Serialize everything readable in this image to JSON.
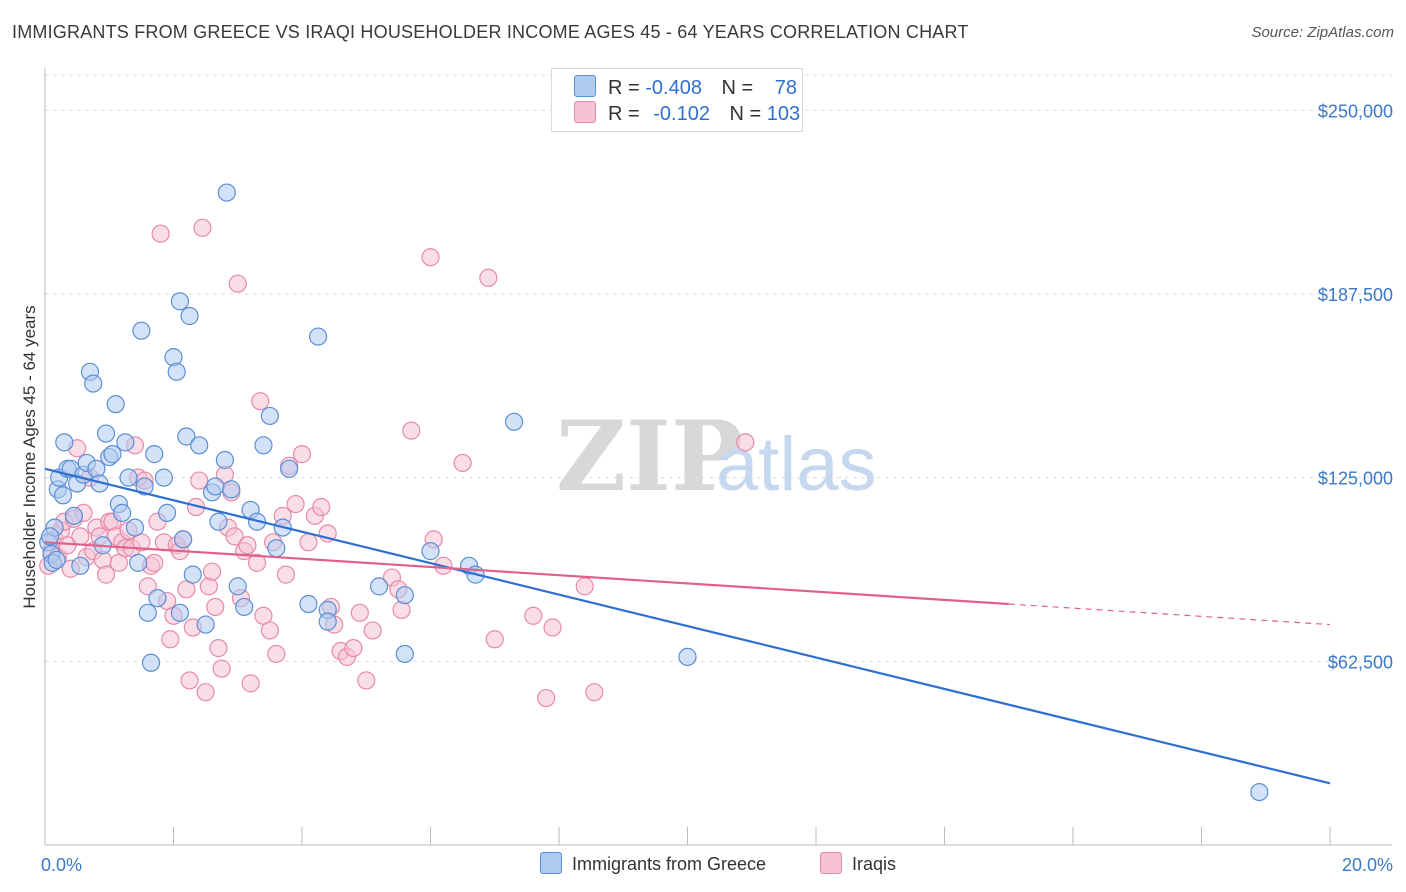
{
  "header": {
    "title": "IMMIGRANTS FROM GREECE VS IRAQI HOUSEHOLDER INCOME AGES 45 - 64 YEARS CORRELATION CHART",
    "source": "Source: ZipAtlas.com"
  },
  "legend": {
    "series1": {
      "r_label": "R =",
      "r_value": "-0.408",
      "n_label": "N =",
      "n_value": "78"
    },
    "series2": {
      "r_label": "R =",
      "r_value": "-0.102",
      "n_label": "N =",
      "n_value": "103"
    }
  },
  "watermark": {
    "part1": "ZIP",
    "part2": "atlas"
  },
  "colors": {
    "blue_fill": "#aecbf0",
    "blue_stroke": "#5b8fd6",
    "blue_line": "#2f6fd0",
    "pink_fill": "#f6c3d3",
    "pink_stroke": "#e88aa8",
    "pink_line": "#e0608c"
  },
  "chart_data": {
    "type": "scatter",
    "title": "IMMIGRANTS FROM GREECE VS IRAQI HOUSEHOLDER INCOME AGES 45 - 64 YEARS CORRELATION CHART",
    "xlabel": "",
    "ylabel": "Householder Income Ages 45 - 64 years",
    "xlim": [
      0,
      20
    ],
    "ylim": [
      0,
      262000
    ],
    "x_tick_labels": [
      "0.0%",
      "20.0%"
    ],
    "y_ticks": [
      62500,
      125000,
      187500,
      250000
    ],
    "y_tick_labels": [
      "$62,500",
      "$125,000",
      "$187,500",
      "$250,000"
    ],
    "grid": true,
    "series": [
      {
        "name": "Immigrants from Greece",
        "color": "#5b8fd6",
        "trend": {
          "x0": 0,
          "y0": 128000,
          "x1": 20,
          "y1": 21000,
          "solid_until": 20
        },
        "points": [
          [
            0.05,
            103000
          ],
          [
            0.1,
            99000
          ],
          [
            0.12,
            96000
          ],
          [
            0.15,
            108000
          ],
          [
            0.2,
            121000
          ],
          [
            0.22,
            125000
          ],
          [
            0.3,
            137000
          ],
          [
            0.35,
            128000
          ],
          [
            0.4,
            128000
          ],
          [
            0.45,
            112000
          ],
          [
            0.5,
            123000
          ],
          [
            0.55,
            95000
          ],
          [
            0.6,
            126000
          ],
          [
            0.65,
            130000
          ],
          [
            0.7,
            161000
          ],
          [
            0.75,
            157000
          ],
          [
            0.8,
            128000
          ],
          [
            0.85,
            123000
          ],
          [
            0.9,
            102000
          ],
          [
            0.95,
            140000
          ],
          [
            1.0,
            132000
          ],
          [
            1.05,
            133000
          ],
          [
            1.1,
            150000
          ],
          [
            1.15,
            116000
          ],
          [
            1.2,
            113000
          ],
          [
            1.25,
            137000
          ],
          [
            1.3,
            125000
          ],
          [
            1.4,
            108000
          ],
          [
            1.45,
            96000
          ],
          [
            1.5,
            175000
          ],
          [
            1.55,
            122000
          ],
          [
            1.6,
            79000
          ],
          [
            1.65,
            62000
          ],
          [
            1.7,
            133000
          ],
          [
            1.75,
            84000
          ],
          [
            1.85,
            125000
          ],
          [
            1.9,
            113000
          ],
          [
            2.0,
            166000
          ],
          [
            2.05,
            161000
          ],
          [
            2.1,
            79000
          ],
          [
            2.15,
            104000
          ],
          [
            2.2,
            139000
          ],
          [
            2.25,
            180000
          ],
          [
            2.3,
            92000
          ],
          [
            2.4,
            136000
          ],
          [
            2.5,
            75000
          ],
          [
            2.6,
            120000
          ],
          [
            2.65,
            122000
          ],
          [
            2.7,
            110000
          ],
          [
            2.8,
            131000
          ],
          [
            2.9,
            121000
          ],
          [
            3.0,
            88000
          ],
          [
            3.1,
            81000
          ],
          [
            3.2,
            114000
          ],
          [
            3.3,
            110000
          ],
          [
            3.4,
            136000
          ],
          [
            3.5,
            146000
          ],
          [
            3.6,
            101000
          ],
          [
            3.7,
            108000
          ],
          [
            3.8,
            128000
          ],
          [
            4.1,
            82000
          ],
          [
            4.25,
            173000
          ],
          [
            4.4,
            80000
          ],
          [
            4.4,
            76000
          ],
          [
            2.83,
            222000
          ],
          [
            2.1,
            185000
          ],
          [
            5.2,
            88000
          ],
          [
            5.6,
            65000
          ],
          [
            5.6,
            85000
          ],
          [
            6.0,
            100000
          ],
          [
            6.6,
            95000
          ],
          [
            6.7,
            92000
          ],
          [
            7.3,
            144000
          ],
          [
            10.0,
            64000
          ],
          [
            18.9,
            18000
          ],
          [
            0.08,
            105000
          ],
          [
            0.18,
            97000
          ],
          [
            0.28,
            119000
          ]
        ]
      },
      {
        "name": "Iraqis",
        "color": "#e88aa8",
        "trend": {
          "x0": 0,
          "y0": 103000,
          "x1": 20,
          "y1": 75000,
          "solid_until": 15
        },
        "points": [
          [
            0.05,
            95000
          ],
          [
            0.1,
            100000
          ],
          [
            0.15,
            104000
          ],
          [
            0.2,
            98000
          ],
          [
            0.25,
            107000
          ],
          [
            0.3,
            110000
          ],
          [
            0.35,
            102000
          ],
          [
            0.4,
            94000
          ],
          [
            0.45,
            111000
          ],
          [
            0.5,
            135000
          ],
          [
            0.55,
            105000
          ],
          [
            0.6,
            113000
          ],
          [
            0.65,
            98000
          ],
          [
            0.7,
            125000
          ],
          [
            0.75,
            100000
          ],
          [
            0.8,
            108000
          ],
          [
            0.85,
            105000
          ],
          [
            0.9,
            97000
          ],
          [
            0.95,
            92000
          ],
          [
            1.0,
            110000
          ],
          [
            1.05,
            110000
          ],
          [
            1.1,
            105000
          ],
          [
            1.15,
            96000
          ],
          [
            1.2,
            103000
          ],
          [
            1.25,
            101000
          ],
          [
            1.3,
            107000
          ],
          [
            1.35,
            101000
          ],
          [
            1.4,
            136000
          ],
          [
            1.45,
            125000
          ],
          [
            1.5,
            103000
          ],
          [
            1.55,
            124000
          ],
          [
            1.6,
            88000
          ],
          [
            1.65,
            95000
          ],
          [
            1.7,
            96000
          ],
          [
            1.75,
            110000
          ],
          [
            1.8,
            208000
          ],
          [
            1.85,
            103000
          ],
          [
            1.9,
            83000
          ],
          [
            1.95,
            70000
          ],
          [
            2.0,
            78000
          ],
          [
            2.05,
            102000
          ],
          [
            2.1,
            100000
          ],
          [
            2.15,
            104000
          ],
          [
            2.2,
            87000
          ],
          [
            2.25,
            56000
          ],
          [
            2.3,
            74000
          ],
          [
            2.35,
            115000
          ],
          [
            2.4,
            124000
          ],
          [
            2.45,
            210000
          ],
          [
            2.5,
            52000
          ],
          [
            2.55,
            88000
          ],
          [
            2.6,
            93000
          ],
          [
            2.65,
            81000
          ],
          [
            2.7,
            67000
          ],
          [
            2.75,
            60000
          ],
          [
            2.8,
            126000
          ],
          [
            2.85,
            108000
          ],
          [
            2.9,
            120000
          ],
          [
            2.95,
            105000
          ],
          [
            3.0,
            191000
          ],
          [
            3.05,
            84000
          ],
          [
            3.1,
            100000
          ],
          [
            3.15,
            102000
          ],
          [
            3.2,
            55000
          ],
          [
            3.3,
            96000
          ],
          [
            3.35,
            151000
          ],
          [
            3.4,
            78000
          ],
          [
            3.5,
            73000
          ],
          [
            3.55,
            103000
          ],
          [
            3.6,
            65000
          ],
          [
            3.7,
            112000
          ],
          [
            3.75,
            92000
          ],
          [
            3.8,
            129000
          ],
          [
            3.9,
            116000
          ],
          [
            4.0,
            133000
          ],
          [
            4.1,
            103000
          ],
          [
            4.2,
            112000
          ],
          [
            4.3,
            115000
          ],
          [
            4.4,
            106000
          ],
          [
            4.45,
            81000
          ],
          [
            4.5,
            75000
          ],
          [
            4.6,
            66000
          ],
          [
            4.7,
            64000
          ],
          [
            4.8,
            67000
          ],
          [
            4.9,
            79000
          ],
          [
            5.0,
            56000
          ],
          [
            5.1,
            73000
          ],
          [
            5.4,
            91000
          ],
          [
            5.5,
            87000
          ],
          [
            5.55,
            80000
          ],
          [
            5.7,
            141000
          ],
          [
            6.0,
            200000
          ],
          [
            6.05,
            104000
          ],
          [
            6.2,
            95000
          ],
          [
            6.5,
            130000
          ],
          [
            6.9,
            193000
          ],
          [
            7.0,
            70000
          ],
          [
            7.6,
            78000
          ],
          [
            7.8,
            50000
          ],
          [
            7.9,
            74000
          ],
          [
            8.4,
            88000
          ],
          [
            8.55,
            52000
          ],
          [
            10.9,
            137000
          ]
        ]
      }
    ]
  },
  "bottom_legend": {
    "series1": "Immigrants from Greece",
    "series2": "Iraqis"
  }
}
